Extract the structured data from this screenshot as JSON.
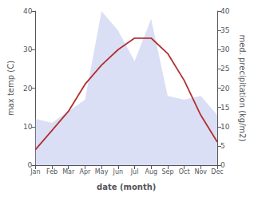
{
  "chart_data": {
    "type": "line",
    "categories": [
      "Jan",
      "Feb",
      "Mar",
      "Apr",
      "May",
      "Jun",
      "Jul",
      "Aug",
      "Sep",
      "Oct",
      "Nov",
      "Dec"
    ],
    "series": [
      {
        "type": "area",
        "color": "#b0b8e8",
        "axis": "y2",
        "values": [
          12,
          11,
          14,
          17,
          40,
          35,
          27,
          38,
          18,
          17,
          18,
          13
        ]
      },
      {
        "type": "line",
        "color": "#b03030",
        "values": [
          4,
          9,
          14,
          21,
          26,
          30,
          33,
          33,
          29,
          22,
          13,
          6
        ]
      }
    ],
    "xlabel": "date (month)",
    "ylabel": "max temp (C)",
    "y2label": "med. precipitation (kg/m2)",
    "ylim": [
      0,
      40
    ],
    "yticks": [
      0,
      10,
      20,
      30,
      40
    ],
    "y2lim": [
      0,
      40
    ],
    "y2ticks": [
      0,
      5,
      10,
      15,
      20,
      25,
      30,
      35,
      40
    ],
    "grid": false
  }
}
